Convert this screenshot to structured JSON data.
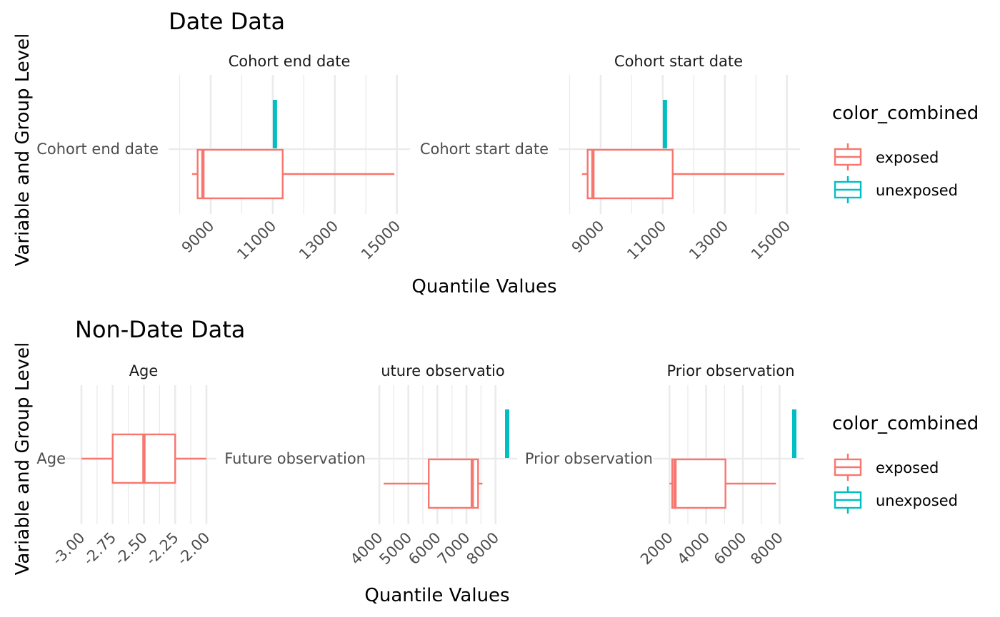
{
  "chart_data": [
    {
      "type": "boxplot",
      "title": "Date Data",
      "xlabel": "Quantile Values",
      "ylabel": "Variable and Group Level",
      "legend": {
        "title": "color_combined",
        "placement": "right",
        "entries": [
          {
            "name": "exposed",
            "color": "#F8766D"
          },
          {
            "name": "unexposed",
            "color": "#00BFC4"
          }
        ]
      },
      "grid": true,
      "panels": [
        {
          "strip": "Cohort end date",
          "category": "Cohort end date",
          "xlim": [
            8150,
            15100
          ],
          "x_major_ticks": [
            9000,
            11000,
            13000,
            15000
          ],
          "x_minor_ticks": [
            8000,
            10000,
            12000,
            14000
          ],
          "series": [
            {
              "name": "unexposed",
              "color": "#00BFC4",
              "min": 11070,
              "q1": 11070,
              "median": 11070,
              "q3": 11070,
              "max": 11070
            },
            {
              "name": "exposed",
              "color": "#F8766D",
              "min": 8400,
              "q1": 8580,
              "median": 8750,
              "q3": 11320,
              "max": 14920
            }
          ]
        },
        {
          "strip": "Cohort start date",
          "category": "Cohort start date",
          "xlim": [
            8150,
            15100
          ],
          "x_major_ticks": [
            9000,
            11000,
            13000,
            15000
          ],
          "x_minor_ticks": [
            8000,
            10000,
            12000,
            14000
          ],
          "series": [
            {
              "name": "unexposed",
              "color": "#00BFC4",
              "min": 11070,
              "q1": 11070,
              "median": 11070,
              "q3": 11070,
              "max": 11070
            },
            {
              "name": "exposed",
              "color": "#F8766D",
              "min": 8400,
              "q1": 8580,
              "median": 8750,
              "q3": 11320,
              "max": 14920
            }
          ]
        }
      ]
    },
    {
      "type": "boxplot",
      "title": "Non-Date Data",
      "xlabel": "Quantile Values",
      "ylabel": "Variable and Group Level",
      "legend": {
        "title": "color_combined",
        "placement": "right",
        "entries": [
          {
            "name": "exposed",
            "color": "#F8766D"
          },
          {
            "name": "unexposed",
            "color": "#00BFC4"
          }
        ]
      },
      "grid": true,
      "panels": [
        {
          "strip": "Age",
          "category": "Age",
          "xlim": [
            -3.0,
            -2.0
          ],
          "x_major_ticks": [
            -3.0,
            -2.75,
            -2.5,
            -2.25,
            -2.0
          ],
          "x_tick_labels": [
            "-3.00",
            "-2.75",
            "-2.50",
            "-2.25",
            "-2.00"
          ],
          "x_minor_ticks": [
            -2.875,
            -2.625,
            -2.375,
            -2.125
          ],
          "series": [
            {
              "name": "exposed",
              "color": "#F8766D",
              "min": -3.0,
              "q1": -2.75,
              "median": -2.5,
              "q3": -2.25,
              "max": -2.0
            }
          ]
        },
        {
          "strip": "uture observatio",
          "category": "Future observation",
          "xlim": [
            3950,
            8400
          ],
          "x_major_ticks": [
            4000,
            5000,
            6000,
            7000,
            8000
          ],
          "x_minor_ticks": [
            4500,
            5500,
            6500,
            7500
          ],
          "series": [
            {
              "name": "unexposed",
              "color": "#00BFC4",
              "min": 8400,
              "q1": 8400,
              "median": 8400,
              "q3": 8400,
              "max": 8400
            },
            {
              "name": "exposed",
              "color": "#F8766D",
              "min": 4150,
              "q1": 5700,
              "median": 7200,
              "q3": 7400,
              "max": 7550
            }
          ]
        },
        {
          "strip": "Prior observation",
          "category": "Prior observation",
          "xlim": [
            1950,
            8800
          ],
          "x_major_ticks": [
            2000,
            4000,
            6000,
            8000
          ],
          "x_minor_ticks": [
            3000,
            5000,
            7000
          ],
          "series": [
            {
              "name": "unexposed",
              "color": "#00BFC4",
              "min": 8800,
              "q1": 8800,
              "median": 8800,
              "q3": 8800,
              "max": 8800
            },
            {
              "name": "exposed",
              "color": "#F8766D",
              "min": 2000,
              "q1": 2150,
              "median": 2300,
              "q3": 5050,
              "max": 7800
            }
          ]
        }
      ]
    }
  ]
}
